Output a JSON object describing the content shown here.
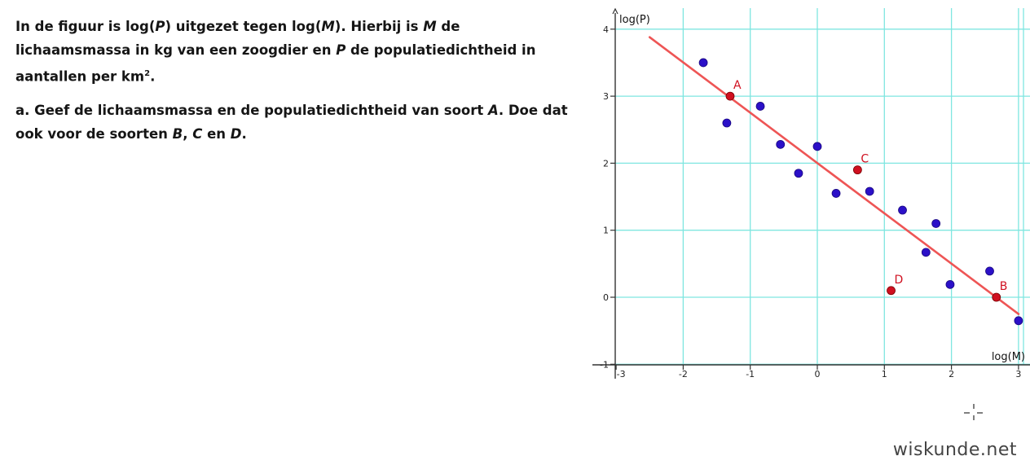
{
  "question": {
    "intro": {
      "p1": "In de figuur is log(",
      "p2": "P",
      "p3": ") uitgezet tegen log(",
      "p4": "M",
      "p5": "). Hierbij is ",
      "p6": "M",
      "p7": " de lichaamsmassa in kg van een zoogdier en ",
      "p8": "P",
      "p9": " de populatiedichtheid in aantallen per km",
      "sup": "2",
      "p10": "."
    },
    "part_a": {
      "p1": "a. Geef de lichaamsmassa en de populatiedichtheid van soort ",
      "p2": "A",
      "p3": ". Doe dat ook voor de soorten ",
      "p4": "B",
      "p5": ", ",
      "p6": "C",
      "p7": " en ",
      "p8": "D",
      "p9": "."
    }
  },
  "watermark": "wiskunde.net",
  "chart_data": {
    "type": "scatter",
    "xlabel": "log(M)",
    "ylabel": "log(P)",
    "xlim": [
      -3.15,
      3.05
    ],
    "ylim": [
      -1.05,
      4.2
    ],
    "xticks": [
      -3,
      -2,
      -1,
      0,
      1,
      2,
      3
    ],
    "yticks": [
      -1,
      0,
      1,
      2,
      3,
      4
    ],
    "grid": true,
    "colors": {
      "grid": "#7fe6e0",
      "line": "#ee5555",
      "blue": "#2b10c8",
      "red": "#d01020"
    },
    "blue_points": [
      [
        -1.7,
        3.5
      ],
      [
        -1.35,
        2.6
      ],
      [
        -0.85,
        2.85
      ],
      [
        -0.55,
        2.28
      ],
      [
        -0.28,
        1.85
      ],
      [
        0.0,
        2.25
      ],
      [
        0.28,
        1.55
      ],
      [
        0.78,
        1.58
      ],
      [
        1.27,
        1.3
      ],
      [
        1.62,
        0.67
      ],
      [
        1.77,
        1.1
      ],
      [
        1.98,
        0.19
      ],
      [
        2.57,
        0.39
      ],
      [
        3.0,
        -0.35
      ]
    ],
    "red_points": [
      {
        "label": "A",
        "x": -1.3,
        "y": 3.0
      },
      {
        "label": "C",
        "x": 0.6,
        "y": 1.9
      },
      {
        "label": "D",
        "x": 1.1,
        "y": 0.1
      },
      {
        "label": "B",
        "x": 2.67,
        "y": 0.0
      }
    ],
    "trend_line": {
      "x1": -2.5,
      "y1": 3.88,
      "x2": 3.0,
      "y2": -0.25
    }
  }
}
